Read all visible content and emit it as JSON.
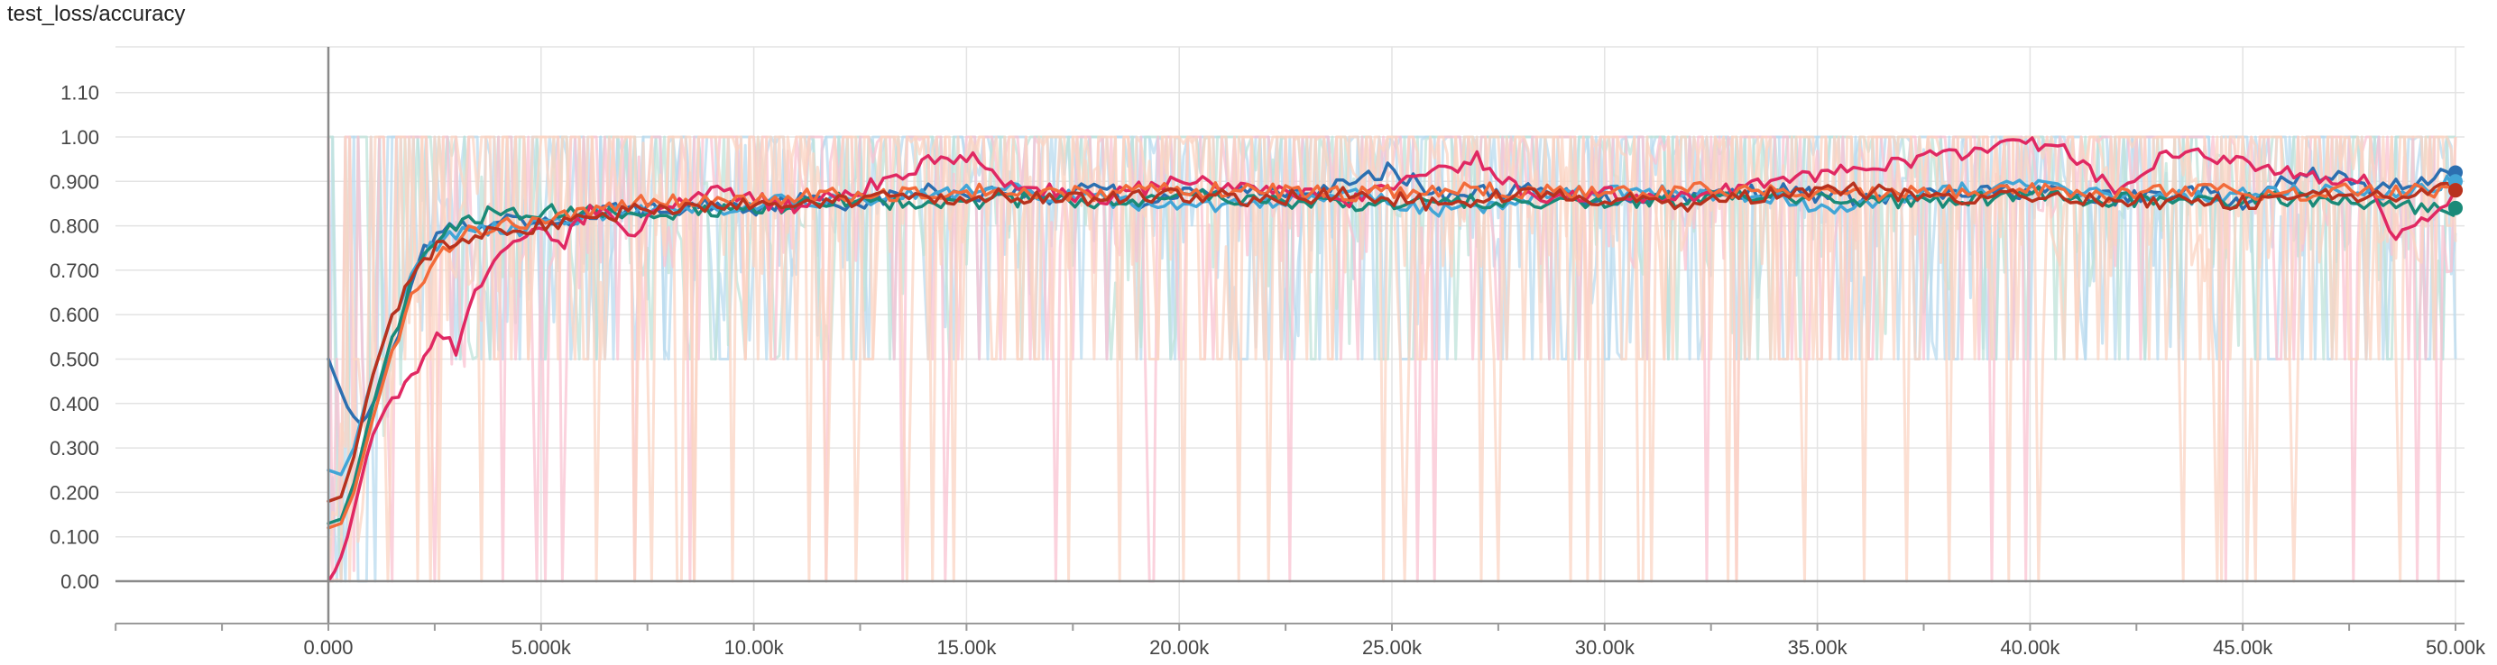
{
  "chart_data": {
    "type": "line",
    "title": "test_loss/accuracy",
    "xlim": [
      -5000,
      50000
    ],
    "ylim": [
      -0.05,
      1.21
    ],
    "x_ticks": [
      0,
      5000,
      10000,
      15000,
      20000,
      25000,
      30000,
      35000,
      40000,
      45000,
      50000
    ],
    "x_tick_labels": [
      "0.000",
      "5.000k",
      "10.00k",
      "15.00k",
      "20.00k",
      "25.00k",
      "30.00k",
      "35.00k",
      "40.00k",
      "45.00k",
      "50.00k"
    ],
    "y_ticks": [
      0,
      0.1,
      0.2,
      0.3,
      0.4,
      0.5,
      0.6,
      0.7,
      0.8,
      0.9,
      1.0,
      1.1
    ],
    "y_tick_labels": [
      "0.00",
      "0.100",
      "0.200",
      "0.300",
      "0.400",
      "0.500",
      "0.600",
      "0.700",
      "0.800",
      "0.900",
      "1.00",
      "1.10"
    ],
    "grid": true,
    "series": [
      {
        "color": "#2c6fb0",
        "raw_color": "#b9dbef",
        "end_marker": true,
        "x": [
          0,
          200,
          500,
          800,
          1200,
          1600,
          2000,
          2500,
          3000,
          3500,
          4000,
          5000,
          6000,
          7000,
          8000,
          9000,
          10000,
          11000,
          12000,
          13000,
          14000,
          15000,
          16000,
          17000,
          18000,
          19000,
          20000,
          22000,
          24000,
          25000,
          26000,
          28000,
          30000,
          32000,
          34000,
          36000,
          38000,
          40000,
          42000,
          44000,
          45000,
          46000,
          47000,
          48000,
          49000,
          50000
        ],
        "y": [
          0.5,
          0.45,
          0.38,
          0.35,
          0.43,
          0.55,
          0.7,
          0.78,
          0.8,
          0.78,
          0.81,
          0.8,
          0.82,
          0.84,
          0.83,
          0.85,
          0.84,
          0.86,
          0.85,
          0.86,
          0.88,
          0.87,
          0.88,
          0.86,
          0.9,
          0.85,
          0.87,
          0.88,
          0.89,
          0.93,
          0.87,
          0.88,
          0.86,
          0.87,
          0.88,
          0.86,
          0.87,
          0.88,
          0.86,
          0.88,
          0.84,
          0.9,
          0.92,
          0.88,
          0.9,
          0.92
        ]
      },
      {
        "color": "#42a5d6",
        "raw_color": "#b9dbef",
        "end_marker": true,
        "x": [
          0,
          300,
          600,
          1000,
          1500,
          2000,
          2500,
          3000,
          3500,
          4000,
          5000,
          6000,
          7000,
          8000,
          10000,
          12000,
          14000,
          16000,
          18000,
          20000,
          22000,
          24000,
          26000,
          28000,
          30000,
          32000,
          34000,
          35000,
          36000,
          38000,
          40000,
          42000,
          44000,
          46000,
          48000,
          50000
        ],
        "y": [
          0.25,
          0.24,
          0.3,
          0.45,
          0.6,
          0.7,
          0.76,
          0.78,
          0.79,
          0.79,
          0.8,
          0.82,
          0.84,
          0.83,
          0.85,
          0.86,
          0.87,
          0.88,
          0.86,
          0.84,
          0.85,
          0.87,
          0.83,
          0.86,
          0.88,
          0.87,
          0.86,
          0.84,
          0.85,
          0.88,
          0.89,
          0.87,
          0.86,
          0.88,
          0.87,
          0.9
        ]
      },
      {
        "color": "#1a8a78",
        "raw_color": "#bfe3da",
        "end_marker": true,
        "x": [
          0,
          300,
          600,
          1000,
          1500,
          2000,
          2500,
          3000,
          3500,
          4000,
          4500,
          5000,
          6000,
          7000,
          8000,
          10000,
          12000,
          14000,
          16000,
          18000,
          20000,
          22000,
          24000,
          26000,
          28000,
          30000,
          32000,
          34000,
          36000,
          38000,
          40000,
          42000,
          44000,
          46000,
          48000,
          50000
        ],
        "y": [
          0.13,
          0.14,
          0.22,
          0.38,
          0.55,
          0.68,
          0.76,
          0.8,
          0.82,
          0.84,
          0.83,
          0.83,
          0.84,
          0.82,
          0.83,
          0.84,
          0.86,
          0.85,
          0.86,
          0.85,
          0.87,
          0.86,
          0.84,
          0.85,
          0.86,
          0.85,
          0.86,
          0.87,
          0.86,
          0.85,
          0.87,
          0.86,
          0.85,
          0.86,
          0.85,
          0.84
        ]
      },
      {
        "color": "#e02862",
        "raw_color": "#f9c3d2",
        "end_marker": false,
        "x": [
          0,
          200,
          400,
          700,
          1000,
          1400,
          1800,
          2200,
          2600,
          3000,
          3300,
          3600,
          4000,
          4500,
          5000,
          5500,
          6000,
          6500,
          7000,
          8000,
          9000,
          10000,
          11000,
          12000,
          13000,
          14000,
          15000,
          16000,
          17000,
          18000,
          20000,
          22000,
          24000,
          26000,
          27000,
          28000,
          29000,
          30000,
          32000,
          34000,
          36000,
          38000,
          40000,
          41000,
          42000,
          43000,
          44000,
          46000,
          48000,
          48500,
          49000,
          50000
        ],
        "y": [
          0.0,
          0.03,
          0.08,
          0.2,
          0.32,
          0.4,
          0.45,
          0.5,
          0.55,
          0.52,
          0.6,
          0.68,
          0.72,
          0.78,
          0.8,
          0.76,
          0.82,
          0.85,
          0.78,
          0.84,
          0.88,
          0.86,
          0.84,
          0.87,
          0.9,
          0.94,
          0.96,
          0.9,
          0.88,
          0.86,
          0.9,
          0.88,
          0.86,
          0.92,
          0.95,
          0.88,
          0.86,
          0.87,
          0.86,
          0.9,
          0.93,
          0.96,
          0.99,
          0.96,
          0.88,
          0.95,
          0.96,
          0.92,
          0.9,
          0.76,
          0.8,
          0.86
        ]
      },
      {
        "color": "#f26b3a",
        "raw_color": "#fbd4c3",
        "end_marker": true,
        "x": [
          0,
          300,
          600,
          1000,
          1500,
          2000,
          2500,
          3000,
          3500,
          4000,
          5000,
          6000,
          7000,
          8000,
          10000,
          12000,
          14000,
          16000,
          18000,
          20000,
          22000,
          24000,
          26000,
          28000,
          30000,
          32000,
          34000,
          36000,
          38000,
          40000,
          42000,
          44000,
          46000,
          48000,
          50000
        ],
        "y": [
          0.12,
          0.13,
          0.2,
          0.35,
          0.52,
          0.65,
          0.73,
          0.77,
          0.79,
          0.8,
          0.81,
          0.83,
          0.85,
          0.86,
          0.86,
          0.87,
          0.87,
          0.88,
          0.87,
          0.88,
          0.88,
          0.87,
          0.88,
          0.88,
          0.87,
          0.88,
          0.88,
          0.87,
          0.88,
          0.88,
          0.87,
          0.88,
          0.87,
          0.88,
          0.88
        ]
      },
      {
        "color": "#b8321e",
        "raw_color": "#fbd4c3",
        "end_marker": true,
        "x": [
          0,
          300,
          600,
          1000,
          1500,
          2000,
          2500,
          3000,
          3500,
          4000,
          5000,
          6000,
          7000,
          8000,
          10000,
          12000,
          14000,
          16000,
          18000,
          20000,
          22000,
          24000,
          26000,
          28000,
          30000,
          32000,
          34000,
          36000,
          38000,
          40000,
          42000,
          44000,
          46000,
          48000,
          50000
        ],
        "y": [
          0.18,
          0.19,
          0.28,
          0.45,
          0.6,
          0.7,
          0.75,
          0.77,
          0.78,
          0.79,
          0.8,
          0.82,
          0.83,
          0.84,
          0.85,
          0.86,
          0.86,
          0.87,
          0.86,
          0.87,
          0.86,
          0.87,
          0.85,
          0.87,
          0.86,
          0.85,
          0.87,
          0.88,
          0.86,
          0.87,
          0.86,
          0.85,
          0.86,
          0.87,
          0.88
        ]
      }
    ]
  }
}
